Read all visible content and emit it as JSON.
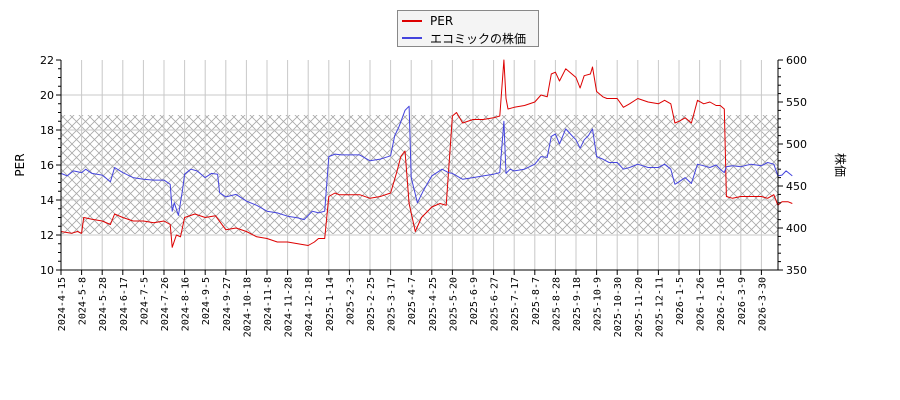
{
  "legend": {
    "items": [
      {
        "label": "PER",
        "color": "#dd0000"
      },
      {
        "label": "エコミックの株価",
        "color": "#4444dd"
      }
    ]
  },
  "axes": {
    "left_title": "PER",
    "right_title": "株価",
    "left_ticks": [
      "22",
      "20",
      "18",
      "16",
      "14",
      "12",
      "10"
    ],
    "right_ticks": [
      "600",
      "550",
      "500",
      "450",
      "400",
      "350"
    ]
  },
  "chart_data": {
    "type": "line",
    "title": "",
    "xlabel": "",
    "ylabel": "PER",
    "ylabel_right": "株価",
    "ylim": [
      10,
      22
    ],
    "ylim_right": [
      350,
      600
    ],
    "grid": true,
    "legend_position": "top-center",
    "shaded_band_per": [
      12.1,
      18.9
    ],
    "x_ticks": [
      "2024-4-15",
      "2024-5-8",
      "2024-5-28",
      "2024-6-17",
      "2024-7-5",
      "2024-7-26",
      "2024-8-16",
      "2024-9-5",
      "2024-9-27",
      "2024-10-18",
      "2024-11-8",
      "2024-11-28",
      "2024-12-18",
      "2025-1-14",
      "2025-2-3",
      "2025-2-25",
      "2025-3-17",
      "2025-4-7",
      "2025-4-25",
      "2025-5-20",
      "2025-6-9",
      "2025-6-27",
      "2025-7-17",
      "2025-8-7",
      "2025-8-28",
      "2025-9-18",
      "2025-10-9",
      "2025-10-30",
      "2025-11-20",
      "2025-12-11",
      "2026-1-5",
      "2026-1-26",
      "2026-2-16",
      "2026-3-9",
      "2026-3-30"
    ],
    "series": [
      {
        "name": "PER",
        "axis": "left",
        "color": "#dd0000",
        "points": [
          [
            0,
            12.2
          ],
          [
            0.5,
            12.1
          ],
          [
            0.8,
            12.2
          ],
          [
            1.0,
            12.1
          ],
          [
            1.1,
            13.0
          ],
          [
            1.5,
            12.9
          ],
          [
            2.0,
            12.8
          ],
          [
            2.4,
            12.6
          ],
          [
            2.6,
            13.2
          ],
          [
            3.0,
            13.0
          ],
          [
            3.5,
            12.8
          ],
          [
            4.0,
            12.8
          ],
          [
            4.5,
            12.7
          ],
          [
            5.0,
            12.8
          ],
          [
            5.3,
            12.6
          ],
          [
            5.4,
            11.3
          ],
          [
            5.6,
            12.0
          ],
          [
            5.8,
            11.9
          ],
          [
            6.0,
            13.0
          ],
          [
            6.5,
            13.2
          ],
          [
            7.0,
            13.0
          ],
          [
            7.5,
            13.1
          ],
          [
            8.0,
            12.3
          ],
          [
            8.5,
            12.4
          ],
          [
            9.0,
            12.2
          ],
          [
            9.5,
            11.9
          ],
          [
            10.0,
            11.8
          ],
          [
            10.5,
            11.6
          ],
          [
            11.0,
            11.6
          ],
          [
            11.5,
            11.5
          ],
          [
            12.0,
            11.4
          ],
          [
            12.3,
            11.6
          ],
          [
            12.5,
            11.8
          ],
          [
            12.8,
            11.8
          ],
          [
            13.0,
            14.2
          ],
          [
            13.3,
            14.4
          ],
          [
            13.5,
            14.3
          ],
          [
            14.0,
            14.3
          ],
          [
            14.5,
            14.3
          ],
          [
            15.0,
            14.1
          ],
          [
            15.5,
            14.2
          ],
          [
            16.0,
            14.4
          ],
          [
            16.3,
            15.6
          ],
          [
            16.5,
            16.5
          ],
          [
            16.7,
            16.8
          ],
          [
            16.9,
            13.8
          ],
          [
            17.2,
            12.2
          ],
          [
            17.5,
            13.0
          ],
          [
            18.0,
            13.6
          ],
          [
            18.4,
            13.8
          ],
          [
            18.7,
            13.7
          ],
          [
            19.0,
            18.8
          ],
          [
            19.2,
            19.0
          ],
          [
            19.5,
            18.4
          ],
          [
            20.0,
            18.6
          ],
          [
            20.5,
            18.6
          ],
          [
            21.0,
            18.7
          ],
          [
            21.3,
            18.8
          ],
          [
            21.5,
            22.0
          ],
          [
            21.6,
            19.8
          ],
          [
            21.7,
            19.2
          ],
          [
            22.0,
            19.3
          ],
          [
            22.5,
            19.4
          ],
          [
            23.0,
            19.6
          ],
          [
            23.3,
            20.0
          ],
          [
            23.6,
            19.9
          ],
          [
            23.8,
            21.2
          ],
          [
            24.0,
            21.3
          ],
          [
            24.2,
            20.8
          ],
          [
            24.5,
            21.5
          ],
          [
            24.8,
            21.2
          ],
          [
            25.0,
            21.0
          ],
          [
            25.2,
            20.4
          ],
          [
            25.4,
            21.1
          ],
          [
            25.7,
            21.2
          ],
          [
            25.8,
            21.6
          ],
          [
            26.0,
            20.2
          ],
          [
            26.3,
            19.9
          ],
          [
            26.5,
            19.8
          ],
          [
            27.0,
            19.8
          ],
          [
            27.3,
            19.3
          ],
          [
            27.6,
            19.5
          ],
          [
            28.0,
            19.8
          ],
          [
            28.5,
            19.6
          ],
          [
            29.0,
            19.5
          ],
          [
            29.3,
            19.7
          ],
          [
            29.6,
            19.5
          ],
          [
            29.8,
            18.4
          ],
          [
            30.0,
            18.5
          ],
          [
            30.3,
            18.7
          ],
          [
            30.6,
            18.4
          ],
          [
            30.9,
            19.7
          ],
          [
            31.2,
            19.5
          ],
          [
            31.5,
            19.6
          ],
          [
            31.8,
            19.4
          ],
          [
            32.0,
            19.4
          ],
          [
            32.2,
            19.2
          ],
          [
            32.3,
            14.2
          ],
          [
            32.6,
            14.1
          ],
          [
            33.0,
            14.2
          ],
          [
            33.5,
            14.2
          ],
          [
            34.0,
            14.2
          ],
          [
            34.3,
            14.1
          ],
          [
            34.6,
            14.3
          ],
          [
            34.8,
            13.7
          ],
          [
            35.0,
            13.9
          ],
          [
            35.3,
            13.9
          ],
          [
            35.5,
            13.8
          ]
        ]
      },
      {
        "name": "エコミックの株価",
        "axis": "right",
        "color": "#4444dd",
        "points": [
          [
            0,
            465
          ],
          [
            0.3,
            462
          ],
          [
            0.6,
            468
          ],
          [
            1.0,
            466
          ],
          [
            1.2,
            470
          ],
          [
            1.5,
            465
          ],
          [
            2.0,
            463
          ],
          [
            2.4,
            455
          ],
          [
            2.6,
            472
          ],
          [
            3.0,
            466
          ],
          [
            3.5,
            460
          ],
          [
            4.0,
            458
          ],
          [
            4.5,
            457
          ],
          [
            5.0,
            457
          ],
          [
            5.3,
            452
          ],
          [
            5.4,
            420
          ],
          [
            5.5,
            430
          ],
          [
            5.7,
            415
          ],
          [
            5.9,
            445
          ],
          [
            6.0,
            464
          ],
          [
            6.3,
            470
          ],
          [
            6.6,
            468
          ],
          [
            7.0,
            460
          ],
          [
            7.3,
            465
          ],
          [
            7.6,
            464
          ],
          [
            7.7,
            442
          ],
          [
            8.0,
            437
          ],
          [
            8.5,
            440
          ],
          [
            9.0,
            432
          ],
          [
            9.5,
            427
          ],
          [
            10.0,
            420
          ],
          [
            10.5,
            418
          ],
          [
            11.0,
            414
          ],
          [
            11.5,
            412
          ],
          [
            11.8,
            410
          ],
          [
            12.2,
            420
          ],
          [
            12.5,
            418
          ],
          [
            12.8,
            420
          ],
          [
            13.0,
            485
          ],
          [
            13.3,
            488
          ],
          [
            13.6,
            487
          ],
          [
            14.0,
            487
          ],
          [
            14.5,
            487
          ],
          [
            15.0,
            480
          ],
          [
            15.5,
            482
          ],
          [
            16.0,
            486
          ],
          [
            16.2,
            510
          ],
          [
            16.4,
            520
          ],
          [
            16.7,
            540
          ],
          [
            16.9,
            545
          ],
          [
            17.0,
            460
          ],
          [
            17.3,
            430
          ],
          [
            17.6,
            445
          ],
          [
            18.0,
            462
          ],
          [
            18.5,
            470
          ],
          [
            18.8,
            466
          ],
          [
            19.0,
            465
          ],
          [
            19.5,
            458
          ],
          [
            20.0,
            460
          ],
          [
            20.5,
            462
          ],
          [
            21.0,
            464
          ],
          [
            21.3,
            466
          ],
          [
            21.5,
            527
          ],
          [
            21.6,
            465
          ],
          [
            21.8,
            470
          ],
          [
            22.0,
            468
          ],
          [
            22.5,
            470
          ],
          [
            23.0,
            476
          ],
          [
            23.3,
            485
          ],
          [
            23.6,
            484
          ],
          [
            23.8,
            509
          ],
          [
            24.0,
            512
          ],
          [
            24.2,
            500
          ],
          [
            24.5,
            518
          ],
          [
            24.8,
            510
          ],
          [
            25.0,
            505
          ],
          [
            25.2,
            495
          ],
          [
            25.4,
            505
          ],
          [
            25.6,
            510
          ],
          [
            25.8,
            518
          ],
          [
            26.0,
            485
          ],
          [
            26.3,
            482
          ],
          [
            26.6,
            478
          ],
          [
            27.0,
            478
          ],
          [
            27.3,
            470
          ],
          [
            27.6,
            472
          ],
          [
            28.0,
            476
          ],
          [
            28.5,
            472
          ],
          [
            29.0,
            472
          ],
          [
            29.3,
            476
          ],
          [
            29.6,
            470
          ],
          [
            29.8,
            452
          ],
          [
            30.0,
            455
          ],
          [
            30.3,
            460
          ],
          [
            30.6,
            453
          ],
          [
            30.9,
            476
          ],
          [
            31.2,
            474
          ],
          [
            31.5,
            472
          ],
          [
            31.8,
            475
          ],
          [
            32.0,
            470
          ],
          [
            32.2,
            466
          ],
          [
            32.3,
            473
          ],
          [
            32.6,
            474
          ],
          [
            33.0,
            473
          ],
          [
            33.5,
            476
          ],
          [
            34.0,
            474
          ],
          [
            34.3,
            478
          ],
          [
            34.6,
            476
          ],
          [
            34.8,
            462
          ],
          [
            35.0,
            463
          ],
          [
            35.2,
            468
          ],
          [
            35.5,
            462
          ]
        ]
      }
    ]
  }
}
